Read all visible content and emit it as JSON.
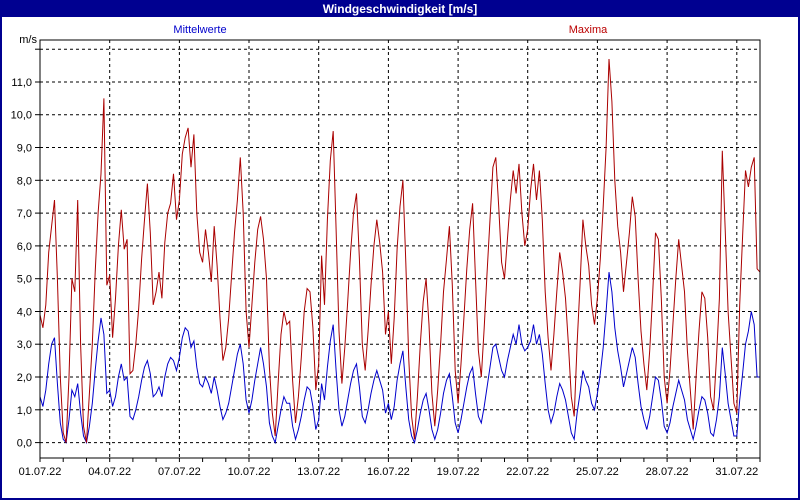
{
  "window": {
    "title": "Windgeschwindigkeit [m/s]"
  },
  "colors": {
    "title_bar": "#000090",
    "frame_border": "#000090",
    "grid": "#000000",
    "background": "#ffffff"
  },
  "chart_data": {
    "type": "line",
    "title": "Windgeschwindigkeit [m/s]",
    "xlabel": "",
    "ylabel": "m/s",
    "grid": "dashed",
    "legend_position": "top",
    "x_axis": {
      "start_date": "01.07.22",
      "end_date": "31.07.22",
      "days": 31,
      "major_tick_step_days": 3,
      "minor_tick_step_days": 1,
      "tick_labels": [
        "01.07.22",
        "04.07.22",
        "07.07.22",
        "10.07.22",
        "13.07.22",
        "16.07.22",
        "19.07.22",
        "22.07.22",
        "25.07.22",
        "28.07.22",
        "31.07.22"
      ]
    },
    "y_axis": {
      "unit": "m/s",
      "min": 0.0,
      "max": 12.0,
      "grid_step": 1.0,
      "tick_labels": [
        "0,0",
        "1,0",
        "2,0",
        "3,0",
        "4,0",
        "5,0",
        "6,0",
        "7,0",
        "8,0",
        "9,0",
        "10,0",
        "11,0"
      ]
    },
    "sample_interval_hours": 3,
    "series": [
      {
        "name": "Mittelwerte",
        "color": "#0000cc",
        "values": [
          1.4,
          1.1,
          1.6,
          2.4,
          3.0,
          3.2,
          1.8,
          0.6,
          0.1,
          0.0,
          0.7,
          1.6,
          1.4,
          1.8,
          0.9,
          0.2,
          0.0,
          0.5,
          1.2,
          2.2,
          3.1,
          3.8,
          3.3,
          1.5,
          1.6,
          1.1,
          1.4,
          2.0,
          2.4,
          1.9,
          2.0,
          0.8,
          0.7,
          1.0,
          1.4,
          1.9,
          2.3,
          2.5,
          2.1,
          1.4,
          1.5,
          1.7,
          1.4,
          2.0,
          2.4,
          2.6,
          2.5,
          2.2,
          2.6,
          3.2,
          3.5,
          3.4,
          2.9,
          3.1,
          2.3,
          1.8,
          1.7,
          2.0,
          1.8,
          1.5,
          2.0,
          1.6,
          1.1,
          0.7,
          0.9,
          1.2,
          1.7,
          2.2,
          2.7,
          3.0,
          2.4,
          1.3,
          0.9,
          1.3,
          1.9,
          2.4,
          2.9,
          2.4,
          1.7,
          0.6,
          0.2,
          0.0,
          0.5,
          1.0,
          1.4,
          1.2,
          1.2,
          0.5,
          0.1,
          0.4,
          0.8,
          1.3,
          1.7,
          1.6,
          1.1,
          0.4,
          0.7,
          1.8,
          1.3,
          2.3,
          3.1,
          3.6,
          2.2,
          1.0,
          0.5,
          0.8,
          1.3,
          1.8,
          2.2,
          2.4,
          1.7,
          0.8,
          0.6,
          1.0,
          1.5,
          1.9,
          2.2,
          1.9,
          1.6,
          0.9,
          1.2,
          0.7,
          1.1,
          1.9,
          2.4,
          2.8,
          1.7,
          0.7,
          0.2,
          0.0,
          0.4,
          0.9,
          1.3,
          1.5,
          1.0,
          0.4,
          0.1,
          0.4,
          0.9,
          1.5,
          1.9,
          2.1,
          1.4,
          0.6,
          0.3,
          0.7,
          1.2,
          1.7,
          2.1,
          2.3,
          1.5,
          0.8,
          0.6,
          1.1,
          1.7,
          2.3,
          2.9,
          3.0,
          2.6,
          2.2,
          2.0,
          2.5,
          2.9,
          3.3,
          3.0,
          3.6,
          3.0,
          2.8,
          2.9,
          3.1,
          3.6,
          3.0,
          3.3,
          2.7,
          1.8,
          1.0,
          0.6,
          0.9,
          1.4,
          1.8,
          1.6,
          1.3,
          0.8,
          0.3,
          0.1,
          0.9,
          1.5,
          2.2,
          1.9,
          1.7,
          1.2,
          1.0,
          1.5,
          2.1,
          2.9,
          4.0,
          5.2,
          4.6,
          3.5,
          2.8,
          2.3,
          1.7,
          2.1,
          2.5,
          2.9,
          2.6,
          1.8,
          1.1,
          0.7,
          0.4,
          0.8,
          1.4,
          2.0,
          1.9,
          1.3,
          0.5,
          0.3,
          0.6,
          1.1,
          1.5,
          1.9,
          1.6,
          1.3,
          0.7,
          0.4,
          0.1,
          0.5,
          1.0,
          1.4,
          1.3,
          0.9,
          0.3,
          0.2,
          0.7,
          1.4,
          2.9,
          2.1,
          1.2,
          0.7,
          0.2,
          0.2,
          1.3,
          2.1,
          3.0,
          3.4,
          4.0,
          3.6,
          2.0,
          2.0
        ]
      },
      {
        "name": "Maxima",
        "color": "#aa0000",
        "values": [
          3.9,
          3.5,
          4.2,
          5.8,
          6.6,
          7.4,
          5.0,
          2.0,
          0.3,
          0.0,
          2.0,
          5.0,
          4.6,
          7.4,
          3.0,
          0.5,
          0.0,
          1.5,
          3.0,
          5.2,
          7.0,
          8.2,
          10.5,
          4.8,
          5.1,
          3.2,
          4.4,
          6.0,
          7.1,
          5.9,
          6.2,
          2.1,
          2.2,
          3.0,
          4.1,
          5.6,
          6.8,
          7.9,
          6.4,
          4.2,
          4.6,
          5.2,
          4.4,
          6.1,
          7.0,
          7.3,
          8.2,
          6.8,
          7.4,
          8.8,
          9.3,
          9.6,
          8.4,
          9.4,
          7.0,
          5.8,
          5.5,
          6.5,
          5.8,
          4.9,
          6.6,
          5.4,
          3.8,
          2.5,
          2.9,
          3.8,
          5.1,
          6.4,
          7.4,
          8.7,
          7.0,
          4.0,
          2.9,
          4.2,
          5.5,
          6.5,
          6.9,
          6.2,
          5.0,
          2.3,
          0.9,
          0.2,
          1.8,
          3.3,
          4.0,
          3.6,
          3.7,
          1.9,
          0.6,
          1.4,
          2.6,
          4.0,
          4.7,
          4.6,
          3.5,
          1.6,
          2.4,
          5.7,
          4.2,
          6.8,
          8.6,
          9.5,
          6.5,
          3.4,
          1.8,
          2.9,
          4.3,
          5.8,
          7.0,
          7.6,
          5.6,
          3.0,
          2.2,
          3.4,
          4.8,
          6.0,
          6.8,
          6.1,
          5.2,
          3.3,
          4.0,
          2.4,
          3.8,
          5.9,
          7.2,
          8.0,
          5.5,
          2.6,
          0.8,
          0.1,
          1.4,
          3.0,
          4.3,
          5.0,
          3.6,
          1.5,
          0.5,
          1.6,
          3.0,
          4.6,
          5.6,
          6.6,
          4.8,
          2.2,
          1.2,
          2.4,
          3.8,
          5.3,
          6.5,
          7.3,
          5.0,
          2.8,
          2.0,
          3.5,
          5.2,
          6.8,
          8.4,
          8.7,
          7.2,
          5.5,
          5.0,
          6.2,
          7.4,
          8.3,
          7.6,
          8.5,
          7.0,
          6.0,
          6.5,
          7.7,
          8.5,
          7.4,
          8.3,
          6.8,
          4.6,
          3.2,
          2.2,
          3.3,
          4.6,
          5.8,
          5.2,
          4.4,
          3.0,
          1.4,
          0.8,
          3.0,
          4.8,
          6.8,
          6.0,
          5.4,
          4.2,
          3.6,
          4.4,
          5.6,
          7.2,
          9.0,
          11.7,
          10.4,
          8.0,
          6.6,
          5.8,
          4.6,
          5.5,
          6.4,
          7.5,
          6.9,
          5.0,
          3.4,
          2.4,
          1.6,
          2.8,
          4.5,
          6.4,
          6.2,
          4.4,
          2.0,
          1.2,
          2.2,
          3.6,
          5.0,
          6.2,
          5.4,
          4.6,
          2.8,
          1.6,
          0.4,
          2.0,
          3.4,
          4.6,
          4.4,
          3.2,
          1.4,
          1.0,
          2.6,
          4.4,
          8.9,
          6.5,
          4.0,
          2.6,
          1.2,
          0.9,
          4.2,
          6.3,
          8.3,
          7.8,
          8.4,
          8.7,
          5.3,
          5.2
        ]
      }
    ]
  }
}
